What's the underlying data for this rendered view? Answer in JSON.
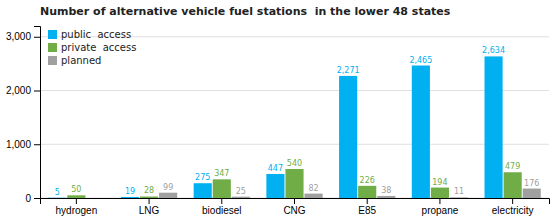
{
  "chart_data": {
    "type": "bar",
    "title": "Number of alternative vehicle fuel stations  in the lower 48 states",
    "categories": [
      "hydrogen",
      "LNG",
      "biodiesel",
      "CNG",
      "E85",
      "propane",
      "electricity"
    ],
    "series": [
      {
        "name": "public  access",
        "color": "#00b0f0",
        "values": [
          5,
          19,
          275,
          447,
          2271,
          2465,
          2634
        ],
        "value_labels": [
          "5",
          "19",
          "275",
          "447",
          "2,271",
          "2,465",
          "2,634"
        ]
      },
      {
        "name": "private  access",
        "color": "#70ad47",
        "values": [
          50,
          28,
          347,
          540,
          226,
          194,
          479
        ]
      },
      {
        "name": "planned",
        "color": "#a0a0a0",
        "values": [
          0,
          99,
          25,
          82,
          38,
          11,
          176
        ],
        "value_labels": [
          null,
          "99",
          "25",
          "82",
          "38",
          "11",
          "176"
        ]
      }
    ],
    "ylim": [
      0,
      3200
    ],
    "yticks": [
      0,
      {
        "value": 1000,
        "label": "1,000"
      },
      {
        "value": 2000,
        "label": "2,000"
      },
      {
        "value": 3000,
        "label": "3,000"
      }
    ],
    "grid": true,
    "legend": "upper left",
    "data_labels": true
  }
}
